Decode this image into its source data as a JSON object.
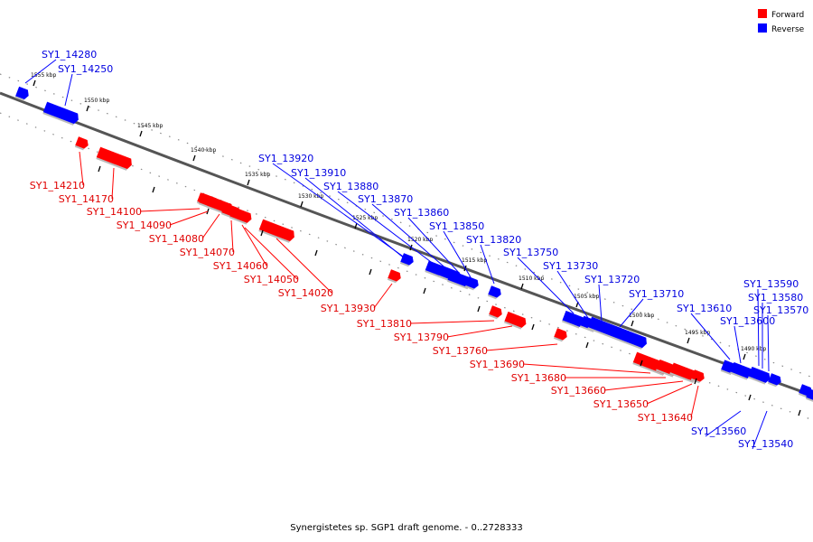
{
  "caption": "Synergistetes sp. SGP1 draft genome. - 0..2728333",
  "legend": [
    {
      "label": "Forward",
      "color": "#ff0000"
    },
    {
      "label": "Reverse",
      "color": "#0000ff"
    }
  ],
  "scale_ticks": [
    "1555 kbp",
    "1550 kbp",
    "1545 kbp",
    "1540 kbp",
    "1535 kbp",
    "1530 kbp",
    "1525 kbp",
    "1520 kbp",
    "1515 kbp",
    "1510 kbp",
    "1505 kbp",
    "1500 kbp",
    "1495 kbp",
    "1490 kbp"
  ],
  "reverse_labels": [
    "SY1_14280",
    "SY1_14250",
    "SY1_13920",
    "SY1_13910",
    "SY1_13880",
    "SY1_13870",
    "SY1_13860",
    "SY1_13850",
    "SY1_13820",
    "SY1_13750",
    "SY1_13730",
    "SY1_13720",
    "SY1_13710",
    "SY1_13610",
    "SY1_13600",
    "SY1_13590",
    "SY1_13580",
    "SY1_13570",
    "SY1_13560",
    "SY1_13540"
  ],
  "forward_labels": [
    "SY1_14210",
    "SY1_14170",
    "SY1_14100",
    "SY1_14090",
    "SY1_14080",
    "SY1_14070",
    "SY1_14060",
    "SY1_14050",
    "SY1_14020",
    "SY1_13930",
    "SY1_13810",
    "SY1_13790",
    "SY1_13760",
    "SY1_13690",
    "SY1_13680",
    "SY1_13660",
    "SY1_13650",
    "SY1_13640"
  ]
}
